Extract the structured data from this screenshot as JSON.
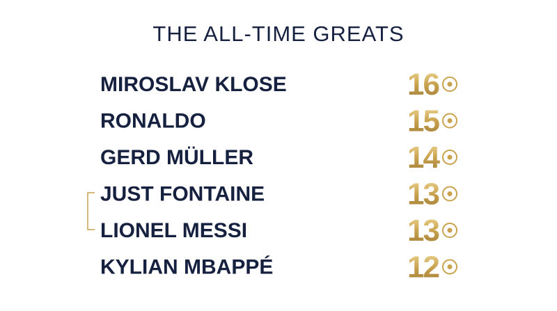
{
  "title": "THE ALL-TIME GREATS",
  "rows": [
    {
      "name": "MIROSLAV KLOSE",
      "goals": 16
    },
    {
      "name": "RONALDO",
      "goals": 15
    },
    {
      "name": "GERD MÜLLER",
      "goals": 14
    },
    {
      "name": "JUST FONTAINE",
      "goals": 13
    },
    {
      "name": "LIONEL MESSI",
      "goals": 13
    },
    {
      "name": "KYLIAN MBAPPÉ",
      "goals": 12
    }
  ]
}
